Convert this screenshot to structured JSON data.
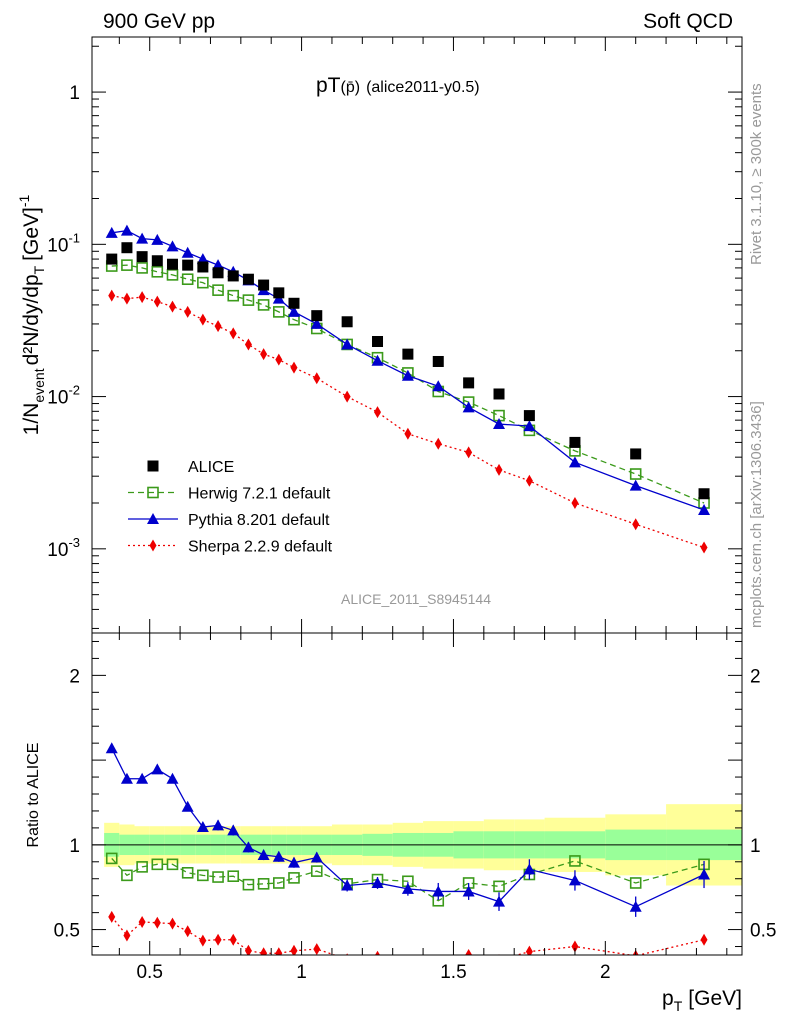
{
  "header": {
    "left": "900 GeV pp",
    "right": "Soft QCD"
  },
  "side_labels": {
    "rivet": "Rivet 3.1.10, ≥ 300k events",
    "mcplots": "mcplots.cern.ch [arXiv:1306.3436]"
  },
  "chart_data": {
    "type": "scatter",
    "title_main": "pT",
    "title_particle": "(p̄)",
    "title_tag": "(alice2011-y0.5)",
    "watermark": "ALICE_2011_S8945144",
    "top_panel": {
      "ylabel": "1/N",
      "ylabel_sub1": "event",
      "ylabel_mid": "d²N/dy/dp",
      "ylabel_sub2": "T",
      "ylabel_unit": "[GeV]",
      "ylabel_exp": "-1",
      "yscale": "log",
      "ylim": [
        0.00028,
        2.3
      ],
      "ytick_labels": [
        {
          "value": 1,
          "base": "1",
          "exp": ""
        },
        {
          "value": 0.1,
          "base": "10",
          "exp": "-1"
        },
        {
          "value": 0.01,
          "base": "10",
          "exp": "-2"
        },
        {
          "value": 0.001,
          "base": "10",
          "exp": "-3"
        }
      ]
    },
    "bottom_panel": {
      "ylabel": "Ratio to ALICE",
      "ylim": [
        0.35,
        2.25
      ],
      "ytick_labels": [
        "2",
        "1",
        "0.5"
      ],
      "ytick_values": [
        2,
        1,
        0.5
      ]
    },
    "xlabel": "p",
    "xlabel_sub": "T",
    "xlabel_unit": "[GeV]",
    "xlim": [
      0.31,
      2.45
    ],
    "xtick_labels": [
      "0.5",
      "1",
      "1.5",
      "2"
    ],
    "xtick_values": [
      0.5,
      1,
      1.5,
      2
    ],
    "x": [
      0.375,
      0.425,
      0.475,
      0.525,
      0.575,
      0.625,
      0.675,
      0.725,
      0.775,
      0.825,
      0.875,
      0.925,
      0.975,
      1.05,
      1.15,
      1.25,
      1.35,
      1.45,
      1.55,
      1.65,
      1.75,
      1.9,
      2.1,
      2.325
    ],
    "x_low": [
      0.35,
      0.4,
      0.45,
      0.5,
      0.55,
      0.6,
      0.65,
      0.7,
      0.75,
      0.8,
      0.85,
      0.9,
      0.95,
      1.0,
      1.1,
      1.2,
      1.3,
      1.4,
      1.5,
      1.6,
      1.7,
      1.8,
      2.0,
      2.2
    ],
    "x_high": [
      0.4,
      0.45,
      0.5,
      0.55,
      0.6,
      0.65,
      0.7,
      0.75,
      0.8,
      0.85,
      0.9,
      0.95,
      1.0,
      1.1,
      1.2,
      1.3,
      1.4,
      1.5,
      1.6,
      1.7,
      1.8,
      2.0,
      2.2,
      2.45
    ],
    "data": {
      "name": "ALICE",
      "color": "#000000",
      "values": [
        0.08,
        0.095,
        0.083,
        0.078,
        0.074,
        0.073,
        0.071,
        0.065,
        0.062,
        0.059,
        0.054,
        0.048,
        0.041,
        0.034,
        0.031,
        0.023,
        0.019,
        0.017,
        0.0123,
        0.0104,
        0.0075,
        0.005,
        0.0042,
        0.0023
      ],
      "band_inner": [
        0.07,
        0.06,
        0.06,
        0.06,
        0.06,
        0.06,
        0.06,
        0.06,
        0.06,
        0.06,
        0.06,
        0.06,
        0.06,
        0.06,
        0.06,
        0.065,
        0.07,
        0.07,
        0.08,
        0.08,
        0.08,
        0.08,
        0.09,
        0.09
      ],
      "band_outer": [
        0.13,
        0.12,
        0.11,
        0.11,
        0.11,
        0.11,
        0.11,
        0.11,
        0.11,
        0.11,
        0.11,
        0.11,
        0.11,
        0.11,
        0.12,
        0.12,
        0.13,
        0.14,
        0.14,
        0.15,
        0.15,
        0.16,
        0.18,
        0.24
      ]
    },
    "series": [
      {
        "name": "Herwig 7.2.1 default",
        "color": "#3b9a1a",
        "marker": "open-square",
        "dash": "6,4",
        "values": [
          0.072,
          0.073,
          0.07,
          0.066,
          0.063,
          0.059,
          0.056,
          0.05,
          0.046,
          0.043,
          0.04,
          0.036,
          0.032,
          0.028,
          0.022,
          0.018,
          0.0143,
          0.0108,
          0.0092,
          0.0075,
          0.006,
          0.0044,
          0.0031,
          0.002
        ],
        "ratio": [
          0.92,
          0.82,
          0.87,
          0.885,
          0.885,
          0.835,
          0.82,
          0.81,
          0.815,
          0.765,
          0.77,
          0.775,
          0.805,
          0.845,
          0.77,
          0.795,
          0.785,
          0.67,
          0.775,
          0.755,
          0.825,
          0.905,
          0.775,
          0.885
        ],
        "ratio_err": [
          0,
          0,
          0,
          0,
          0,
          0,
          0,
          0,
          0,
          0,
          0,
          0,
          0,
          0,
          0,
          0,
          0,
          0,
          0,
          0,
          0,
          0,
          0,
          0
        ]
      },
      {
        "name": "Pythia 8.201 default",
        "color": "#0000cc",
        "marker": "filled-triangle",
        "dash": "",
        "values": [
          0.119,
          0.123,
          0.109,
          0.107,
          0.097,
          0.088,
          0.08,
          0.073,
          0.066,
          0.058,
          0.05,
          0.044,
          0.036,
          0.03,
          0.022,
          0.0172,
          0.0137,
          0.0117,
          0.0085,
          0.0066,
          0.0064,
          0.0037,
          0.0026,
          0.0018
        ],
        "ratio": [
          1.57,
          1.39,
          1.39,
          1.445,
          1.39,
          1.225,
          1.105,
          1.115,
          1.085,
          0.985,
          0.94,
          0.93,
          0.895,
          0.925,
          0.76,
          0.775,
          0.74,
          0.725,
          0.725,
          0.665,
          0.855,
          0.79,
          0.635,
          0.825
        ],
        "ratio_err": [
          0.015,
          0.015,
          0.015,
          0.025,
          0.025,
          0.025,
          0.025,
          0.03,
          0.03,
          0.03,
          0.03,
          0.03,
          0.03,
          0.03,
          0.035,
          0.035,
          0.04,
          0.05,
          0.05,
          0.055,
          0.06,
          0.06,
          0.06,
          0.08
        ]
      },
      {
        "name": "Sherpa 2.2.9 default",
        "color": "#ee0000",
        "marker": "filled-diamond",
        "dash": "2,3",
        "values": [
          0.046,
          0.044,
          0.045,
          0.042,
          0.039,
          0.036,
          0.032,
          0.029,
          0.026,
          0.022,
          0.019,
          0.0175,
          0.0155,
          0.0132,
          0.01,
          0.0079,
          0.0057,
          0.0049,
          0.0043,
          0.0033,
          0.0028,
          0.002,
          0.00145,
          0.00102
        ],
        "ratio": [
          0.575,
          0.465,
          0.545,
          0.54,
          0.535,
          0.49,
          0.435,
          0.44,
          0.44,
          0.375,
          0.36,
          0.36,
          0.375,
          0.385,
          0.325,
          0.34,
          0.3,
          0.29,
          0.35,
          0.32,
          0.37,
          0.4,
          0.345,
          0.44
        ],
        "ratio_err": [
          0,
          0,
          0,
          0,
          0,
          0,
          0,
          0,
          0,
          0,
          0,
          0,
          0,
          0,
          0,
          0,
          0,
          0,
          0,
          0,
          0,
          0,
          0,
          0
        ]
      }
    ]
  }
}
